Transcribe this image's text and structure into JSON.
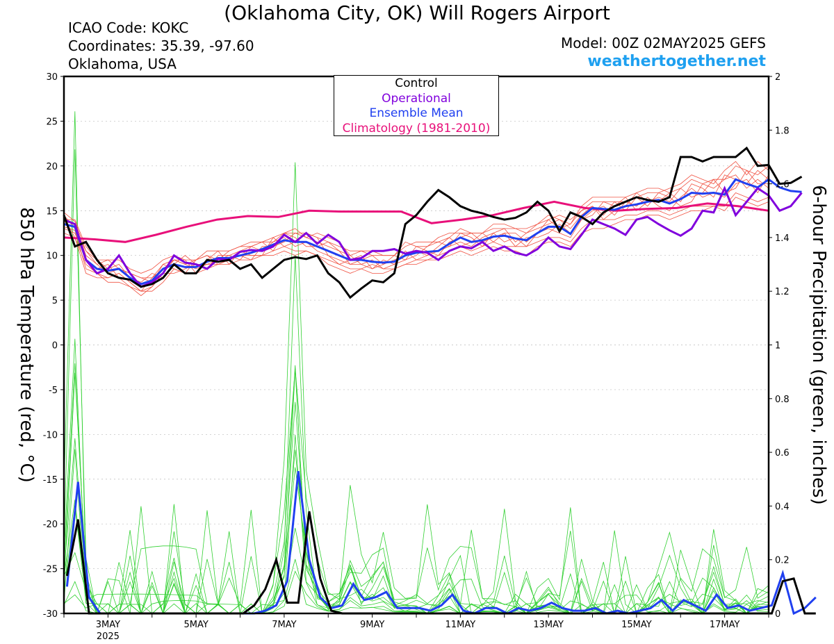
{
  "header": {
    "title": "(Oklahoma City, OK) Will Rogers Airport",
    "icao": "ICAO Code: KOKC",
    "coords": "Coordinates: 35.39, -97.60",
    "region": "Oklahoma, USA",
    "model": "Model: 00Z 02MAY2025 GEFS",
    "site": "weathertogether.net"
  },
  "legend": {
    "control": "Control",
    "operational": "Operational",
    "mean": "Ensemble Mean",
    "climo": "Climatology (1981-2010)"
  },
  "colors": {
    "control": "#000000",
    "operational": "#8000dd",
    "mean": "#2040f0",
    "climo": "#e8107a",
    "members_temp": "#f05040",
    "members_precip": "#30d030"
  },
  "chart_data": {
    "type": "line",
    "title": "(Oklahoma City, OK) Will Rogers Airport",
    "ylabel": "850 hPa Temperature (red, °C)",
    "y2label": "6-hour Precipitation (green, inches)",
    "ylim": [
      -30,
      30
    ],
    "y2lim": [
      0,
      2
    ],
    "x_tick_labels": [
      "3MAY",
      "5MAY",
      "7MAY",
      "9MAY",
      "11MAY",
      "13MAY",
      "15MAY",
      "17MAY"
    ],
    "x_year_label": "2025",
    "y_ticks": [
      -30,
      -25,
      -20,
      -15,
      -10,
      -5,
      0,
      5,
      10,
      15,
      20,
      25,
      30
    ],
    "y2_ticks": [
      "0",
      "0.2",
      "0.4",
      "0.6",
      "0.8",
      "1",
      "1.2",
      "1.4",
      "1.6",
      "1.8",
      "2"
    ],
    "x_days": {
      "start_day": 2.0,
      "end_day": 18.0,
      "step_hours": 6
    },
    "temperature": {
      "control": [
        14.5,
        11.0,
        11.5,
        9.5,
        8.0,
        7.5,
        7.3,
        6.5,
        6.8,
        7.5,
        9.0,
        8.0,
        8.0,
        9.5,
        9.3,
        9.5,
        8.5,
        9.0,
        7.5,
        8.5,
        9.5,
        9.8,
        9.6,
        10.0,
        8.0,
        7.0,
        5.3,
        6.3,
        7.2,
        7.0,
        8.0,
        13.5,
        14.5,
        16.0,
        17.3,
        16.5,
        15.5,
        15.0,
        14.7,
        14.3,
        14.0,
        14.2,
        14.8,
        16.0,
        15.0,
        12.7,
        14.8,
        14.3,
        13.5,
        14.8,
        15.5,
        16.0,
        16.5,
        16.2,
        16.0,
        16.5,
        21.0,
        21.0,
        20.5,
        21.0,
        21.0,
        21.0,
        22.0,
        20.0,
        20.1,
        18.0,
        18.1,
        18.8
      ],
      "operational": [
        14.0,
        13.5,
        9.5,
        8.0,
        8.5,
        10.0,
        8.0,
        6.5,
        7.0,
        8.0,
        10.0,
        9.2,
        9.0,
        8.5,
        9.6,
        9.5,
        10.4,
        10.6,
        10.5,
        11.0,
        12.3,
        11.5,
        12.5,
        11.3,
        12.3,
        11.5,
        9.5,
        9.7,
        10.5,
        10.5,
        10.7,
        10.2,
        10.5,
        10.3,
        9.5,
        10.5,
        11.0,
        10.8,
        11.5,
        10.5,
        11.0,
        10.3,
        10.0,
        10.7,
        12.0,
        11.0,
        10.7,
        12.3,
        14.0,
        13.5,
        13.0,
        12.3,
        14.0,
        14.3,
        13.5,
        12.8,
        12.2,
        13.0,
        15.0,
        14.8,
        17.5,
        14.5,
        16.0,
        17.5,
        16.7,
        15.0,
        15.5,
        17.0
      ],
      "mean": [
        13.5,
        13.2,
        9.5,
        8.5,
        8.3,
        8.5,
        7.5,
        6.8,
        7.2,
        8.5,
        9.0,
        8.7,
        8.7,
        9.3,
        9.7,
        9.7,
        10.0,
        10.3,
        10.7,
        11.2,
        11.7,
        11.5,
        11.5,
        11.0,
        10.5,
        10.0,
        9.5,
        9.5,
        9.3,
        9.2,
        9.3,
        10.0,
        10.3,
        10.4,
        10.5,
        11.3,
        12.0,
        11.5,
        11.7,
        12.1,
        12.2,
        11.9,
        11.7,
        12.5,
        13.2,
        13.2,
        12.4,
        14.3,
        15.3,
        15.2,
        15.1,
        15.5,
        15.7,
        16.0,
        16.2,
        15.8,
        16.3,
        17.0,
        16.9,
        17.0,
        16.8,
        18.5,
        18.0,
        17.6,
        18.5,
        17.6,
        17.2,
        17.1
      ],
      "climo": [
        12.0,
        11.8,
        11.5,
        12.3,
        13.2,
        14.0,
        14.4,
        14.3,
        15.0,
        14.9,
        14.9,
        14.9,
        13.6,
        14.0,
        14.5,
        15.3,
        16.0,
        15.3,
        15.0,
        15.2,
        15.3,
        15.8,
        15.5,
        15.0
      ],
      "members": [
        [
          14.2,
          12.0,
          9.0,
          8.0,
          7.5,
          8.0,
          7.0,
          6.0,
          6.5,
          8.0,
          9.5,
          9.0,
          8.5,
          9.0,
          9.5,
          10.0,
          10.5,
          11.0,
          10.5,
          11.5,
          12.0,
          11.0,
          11.5,
          10.5,
          10.0,
          9.5,
          9.0,
          9.0,
          8.5,
          9.0,
          9.5,
          10.0,
          10.5,
          10.0,
          10.5,
          11.0,
          11.5,
          11.0,
          12.0,
          12.5,
          11.5,
          12.0,
          11.0,
          12.5,
          13.0,
          12.5,
          12.0,
          14.0,
          15.0,
          15.5,
          14.5,
          16.0,
          15.5,
          16.5,
          15.5,
          15.0,
          16.5,
          17.5,
          16.5,
          17.0,
          16.5,
          18.0,
          18.5,
          17.0,
          19.0,
          17.5,
          17.0,
          16.5
        ],
        [
          13.8,
          13.5,
          10.0,
          9.0,
          8.0,
          8.5,
          8.0,
          7.5,
          7.0,
          9.0,
          8.5,
          8.0,
          9.5,
          10.0,
          9.0,
          9.5,
          10.0,
          9.5,
          11.0,
          11.0,
          11.5,
          12.5,
          12.0,
          11.5,
          11.0,
          10.5,
          10.0,
          9.0,
          9.5,
          8.5,
          9.0,
          9.5,
          10.0,
          11.0,
          11.5,
          11.0,
          12.5,
          12.0,
          11.0,
          12.5,
          13.0,
          11.5,
          12.5,
          13.0,
          13.5,
          14.0,
          13.0,
          14.5,
          15.5,
          14.5,
          16.0,
          15.0,
          16.5,
          15.5,
          17.0,
          16.5,
          15.5,
          16.0,
          18.0,
          17.5,
          18.5,
          19.0,
          17.5,
          18.5,
          17.5,
          16.0,
          18.0,
          18.5
        ],
        [
          13.0,
          12.5,
          9.5,
          8.5,
          9.0,
          7.5,
          6.5,
          6.0,
          7.5,
          8.5,
          9.5,
          9.5,
          8.0,
          9.5,
          10.5,
          9.0,
          10.5,
          10.0,
          10.0,
          12.0,
          11.0,
          11.5,
          12.5,
          12.0,
          10.0,
          9.0,
          9.5,
          10.0,
          8.5,
          9.5,
          9.0,
          10.5,
          9.5,
          10.0,
          11.0,
          12.0,
          11.0,
          11.5,
          12.5,
          11.5,
          12.5,
          11.0,
          12.0,
          12.0,
          12.5,
          13.5,
          12.5,
          14.0,
          14.5,
          16.0,
          15.5,
          16.5,
          15.0,
          16.0,
          16.5,
          16.0,
          17.5,
          16.5,
          17.0,
          18.5,
          17.0,
          17.5,
          19.5,
          18.0,
          18.0,
          19.0,
          16.0,
          17.5
        ],
        [
          14.5,
          13.0,
          10.5,
          9.5,
          8.5,
          9.0,
          7.5,
          7.0,
          8.0,
          7.5,
          9.0,
          10.0,
          9.0,
          8.5,
          10.0,
          10.0,
          9.5,
          11.0,
          11.5,
          10.5,
          12.5,
          12.0,
          11.0,
          11.0,
          11.5,
          10.5,
          9.0,
          9.5,
          10.0,
          9.0,
          10.0,
          9.5,
          11.0,
          10.5,
          10.0,
          11.5,
          12.0,
          12.5,
          11.5,
          12.0,
          12.5,
          12.5,
          11.5,
          12.5,
          14.0,
          13.0,
          13.5,
          15.0,
          15.5,
          14.0,
          15.0,
          15.5,
          17.0,
          16.0,
          16.0,
          17.0,
          16.0,
          18.0,
          17.5,
          16.5,
          19.0,
          18.5,
          18.0,
          19.5,
          18.5,
          17.5,
          18.5,
          16.0
        ],
        [
          13.2,
          12.8,
          8.5,
          8.0,
          7.0,
          7.0,
          6.5,
          5.5,
          6.5,
          8.0,
          8.0,
          8.5,
          9.0,
          9.0,
          9.0,
          9.5,
          10.0,
          10.0,
          10.0,
          10.5,
          11.0,
          10.5,
          10.5,
          10.0,
          9.5,
          9.0,
          8.5,
          8.5,
          9.0,
          8.5,
          8.5,
          9.0,
          9.5,
          9.5,
          10.0,
          10.5,
          11.0,
          10.5,
          11.0,
          11.5,
          11.0,
          11.0,
          11.0,
          11.5,
          12.0,
          12.0,
          11.5,
          13.0,
          14.0,
          14.0,
          14.0,
          14.5,
          14.5,
          15.0,
          15.0,
          14.5,
          15.0,
          15.5,
          15.5,
          15.5,
          15.5,
          17.0,
          16.5,
          16.0,
          16.5,
          15.5,
          15.5,
          15.0
        ],
        [
          14.0,
          14.0,
          11.0,
          9.5,
          9.5,
          9.5,
          8.5,
          8.0,
          8.5,
          9.5,
          10.0,
          9.5,
          9.5,
          10.5,
          10.5,
          10.5,
          11.0,
          11.5,
          11.5,
          12.0,
          12.5,
          12.5,
          12.5,
          12.0,
          11.5,
          11.0,
          10.5,
          10.5,
          10.0,
          10.0,
          10.0,
          11.0,
          11.5,
          11.5,
          11.5,
          12.0,
          13.0,
          12.5,
          12.5,
          13.0,
          13.0,
          13.0,
          12.5,
          13.5,
          14.5,
          14.0,
          13.5,
          15.5,
          16.5,
          16.5,
          16.5,
          16.5,
          17.0,
          17.5,
          17.5,
          17.0,
          17.5,
          18.5,
          18.0,
          18.5,
          18.5,
          20.0,
          19.5,
          19.0,
          20.0,
          19.0,
          19.0,
          19.0
        ],
        [
          12.5,
          12.0,
          8.0,
          7.5,
          7.5,
          8.0,
          7.0,
          6.0,
          6.0,
          7.0,
          8.5,
          8.0,
          8.0,
          8.5,
          9.0,
          9.0,
          9.5,
          9.5,
          10.0,
          10.0,
          10.5,
          10.0,
          10.5,
          10.0,
          9.0,
          8.5,
          8.0,
          8.5,
          8.0,
          8.0,
          8.5,
          9.0,
          9.0,
          9.5,
          9.5,
          10.0,
          10.5,
          10.0,
          10.5,
          11.0,
          10.5,
          10.5,
          10.0,
          11.0,
          11.5,
          11.5,
          11.0,
          12.5,
          13.0,
          13.0,
          13.5,
          14.0,
          14.0,
          14.5,
          14.5,
          14.0,
          14.5,
          15.0,
          15.0,
          15.5,
          15.0,
          16.5,
          16.0,
          15.5,
          16.0,
          15.0,
          14.5,
          14.0
        ],
        [
          14.8,
          13.8,
          10.5,
          9.0,
          9.5,
          8.5,
          8.0,
          7.5,
          7.5,
          9.0,
          9.5,
          9.0,
          9.5,
          10.0,
          9.5,
          10.5,
          11.0,
          11.0,
          11.5,
          11.5,
          12.5,
          13.0,
          12.0,
          12.5,
          12.0,
          11.5,
          10.0,
          10.5,
          10.5,
          10.0,
          10.0,
          11.5,
          11.0,
          11.0,
          12.0,
          12.5,
          12.5,
          12.5,
          12.5,
          13.5,
          13.5,
          13.0,
          13.0,
          13.5,
          14.0,
          14.5,
          14.0,
          15.0,
          16.0,
          16.0,
          16.0,
          16.0,
          16.5,
          17.0,
          17.0,
          17.5,
          18.0,
          19.0,
          18.5,
          18.0,
          19.5,
          20.5,
          19.0,
          20.5,
          19.5,
          18.5,
          19.5,
          18.0
        ]
      ],
      "member_count": 20
    },
    "precipitation": {
      "control": [
        0.14,
        0.35,
        0.0,
        0.0,
        0.0,
        0.0,
        0.0,
        0.0,
        0.0,
        0.0,
        0.0,
        0.0,
        0.0,
        0.0,
        0.0,
        0.0,
        0.0,
        0.03,
        0.09,
        0.2,
        0.04,
        0.04,
        0.38,
        0.13,
        0.01,
        0.0,
        0.0,
        0.0,
        0.0,
        0.0,
        0.0,
        0.0,
        0.0,
        0.0,
        0.0,
        0.0,
        0.0,
        0.0,
        0.0,
        0.0,
        0.0,
        0.0,
        0.0,
        0.0,
        0.0,
        0.0,
        0.0,
        0.0,
        0.0,
        0.0,
        0.0,
        0.0,
        0.0,
        0.0,
        0.0,
        0.0,
        0.0,
        0.0,
        0.0,
        0.0,
        0.0,
        0.0,
        0.0,
        0.0,
        0.0,
        0.12,
        0.13,
        0.0,
        0.0
      ],
      "mean": [
        0.1,
        0.49,
        0.06,
        0.0,
        0.0,
        0.0,
        0.0,
        0.0,
        0.0,
        0.0,
        0.0,
        0.0,
        0.0,
        0.0,
        0.0,
        0.0,
        0.0,
        0.0,
        0.01,
        0.03,
        0.12,
        0.53,
        0.2,
        0.06,
        0.02,
        0.03,
        0.11,
        0.05,
        0.06,
        0.08,
        0.02,
        0.02,
        0.02,
        0.01,
        0.03,
        0.07,
        0.01,
        0.0,
        0.02,
        0.02,
        0.0,
        0.02,
        0.01,
        0.02,
        0.04,
        0.02,
        0.01,
        0.01,
        0.02,
        0.0,
        0.01,
        0.0,
        0.01,
        0.02,
        0.05,
        0.01,
        0.05,
        0.03,
        0.01,
        0.07,
        0.02,
        0.03,
        0.01,
        0.02,
        0.03,
        0.15,
        0.0,
        0.02,
        0.06
      ]
    }
  }
}
